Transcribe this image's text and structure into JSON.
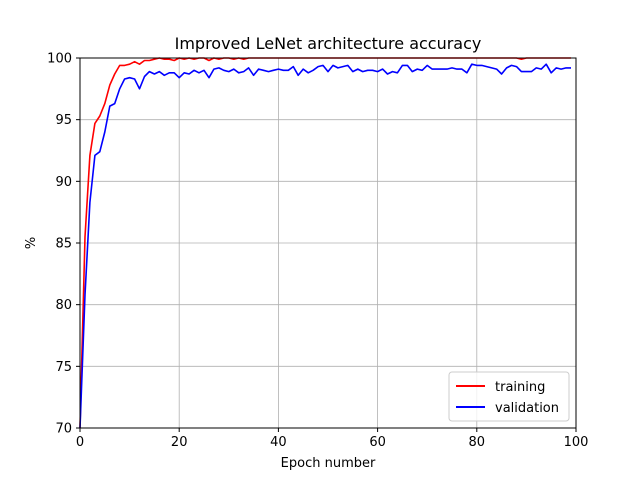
{
  "chart_data": {
    "type": "line",
    "title": "Improved LeNet architecture accuracy",
    "xlabel": "Epoch number",
    "ylabel": "%",
    "xlim": [
      0,
      100
    ],
    "ylim": [
      70,
      100
    ],
    "xticks": [
      0,
      20,
      40,
      60,
      80,
      100
    ],
    "yticks": [
      70,
      75,
      80,
      85,
      90,
      95,
      100
    ],
    "grid": true,
    "legend_position": "lower-right",
    "series": [
      {
        "name": "training",
        "color": "#ff0000",
        "x": [
          0,
          1,
          2,
          3,
          4,
          5,
          6,
          7,
          8,
          9,
          10,
          11,
          12,
          13,
          14,
          15,
          16,
          17,
          18,
          19,
          20,
          21,
          22,
          23,
          24,
          25,
          26,
          27,
          28,
          29,
          30,
          31,
          32,
          33,
          34,
          35,
          36,
          37,
          38,
          39,
          40,
          41,
          42,
          43,
          44,
          45,
          46,
          47,
          48,
          49,
          50,
          51,
          52,
          53,
          54,
          55,
          56,
          57,
          58,
          59,
          60,
          61,
          62,
          63,
          64,
          65,
          66,
          67,
          68,
          69,
          70,
          71,
          72,
          73,
          74,
          75,
          76,
          77,
          78,
          79,
          80,
          81,
          82,
          83,
          84,
          85,
          86,
          87,
          88,
          89,
          90,
          91,
          92,
          93,
          94,
          95,
          96,
          97,
          98,
          99
        ],
        "values": [
          70.0,
          85.5,
          92.1,
          94.7,
          95.3,
          96.3,
          97.8,
          98.7,
          99.4,
          99.4,
          99.5,
          99.7,
          99.5,
          99.8,
          99.8,
          99.9,
          100.0,
          99.9,
          99.9,
          99.8,
          100.0,
          99.9,
          100.0,
          99.9,
          100.0,
          100.0,
          99.8,
          100.0,
          99.9,
          100.0,
          100.0,
          99.9,
          100.0,
          99.9,
          100.0,
          100.0,
          100.0,
          100.0,
          100.0,
          100.0,
          100.0,
          100.0,
          100.0,
          100.0,
          100.0,
          100.0,
          100.0,
          100.0,
          100.0,
          100.0,
          100.0,
          100.0,
          100.0,
          100.0,
          100.0,
          100.0,
          100.0,
          100.0,
          100.0,
          100.0,
          100.0,
          100.0,
          100.0,
          100.0,
          100.0,
          100.0,
          100.0,
          100.0,
          100.0,
          100.0,
          100.0,
          100.0,
          100.0,
          100.0,
          100.0,
          100.0,
          100.0,
          100.0,
          100.0,
          100.0,
          100.0,
          100.0,
          100.0,
          100.0,
          100.0,
          100.0,
          100.0,
          100.0,
          100.0,
          99.9,
          100.0,
          100.0,
          100.0,
          100.0,
          100.0,
          100.0,
          100.0,
          100.0,
          100.0,
          100.0
        ]
      },
      {
        "name": "validation",
        "color": "#0000ff",
        "x": [
          0,
          1,
          2,
          3,
          4,
          5,
          6,
          7,
          8,
          9,
          10,
          11,
          12,
          13,
          14,
          15,
          16,
          17,
          18,
          19,
          20,
          21,
          22,
          23,
          24,
          25,
          26,
          27,
          28,
          29,
          30,
          31,
          32,
          33,
          34,
          35,
          36,
          37,
          38,
          39,
          40,
          41,
          42,
          43,
          44,
          45,
          46,
          47,
          48,
          49,
          50,
          51,
          52,
          53,
          54,
          55,
          56,
          57,
          58,
          59,
          60,
          61,
          62,
          63,
          64,
          65,
          66,
          67,
          68,
          69,
          70,
          71,
          72,
          73,
          74,
          75,
          76,
          77,
          78,
          79,
          80,
          81,
          82,
          83,
          84,
          85,
          86,
          87,
          88,
          89,
          90,
          91,
          92,
          93,
          94,
          95,
          96,
          97,
          98,
          99
        ],
        "values": [
          70.0,
          80.8,
          88.3,
          92.1,
          92.4,
          94.0,
          96.1,
          96.3,
          97.5,
          98.3,
          98.4,
          98.3,
          97.5,
          98.5,
          98.9,
          98.7,
          98.9,
          98.6,
          98.8,
          98.8,
          98.4,
          98.8,
          98.7,
          99.0,
          98.8,
          99.0,
          98.4,
          99.1,
          99.2,
          99.0,
          98.9,
          99.1,
          98.8,
          98.9,
          99.2,
          98.6,
          99.1,
          99.0,
          98.9,
          99.0,
          99.1,
          99.0,
          99.0,
          99.3,
          98.6,
          99.1,
          98.8,
          99.0,
          99.3,
          99.4,
          98.9,
          99.4,
          99.2,
          99.3,
          99.4,
          98.9,
          99.1,
          98.9,
          99.0,
          99.0,
          98.9,
          99.1,
          98.7,
          98.9,
          98.8,
          99.4,
          99.4,
          98.9,
          99.1,
          99.0,
          99.4,
          99.1,
          99.1,
          99.1,
          99.1,
          99.2,
          99.1,
          99.1,
          98.8,
          99.5,
          99.4,
          99.4,
          99.3,
          99.2,
          99.1,
          98.7,
          99.2,
          99.4,
          99.3,
          98.9,
          98.9,
          98.9,
          99.2,
          99.1,
          99.5,
          98.8,
          99.2,
          99.1,
          99.2,
          99.2
        ]
      }
    ]
  }
}
